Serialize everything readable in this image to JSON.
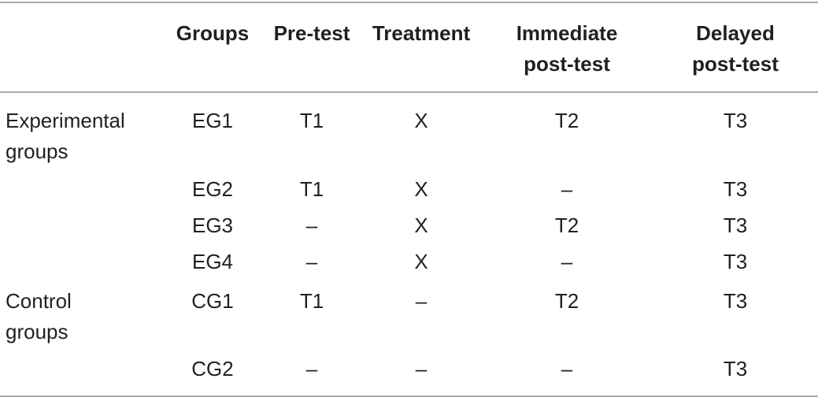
{
  "table": {
    "headers": {
      "groups": "Groups",
      "pretest": "Pre-test",
      "treatment": "Treatment",
      "immediate_line1": "Immediate",
      "immediate_line2": "post-test",
      "delayed_line1": "Delayed",
      "delayed_line2": "post-test"
    },
    "categories": {
      "experimental_line1": "Experimental",
      "experimental_line2": "groups",
      "control_line1": "Control",
      "control_line2": "groups"
    },
    "rows": [
      {
        "group": "EG1",
        "pretest": "T1",
        "treatment": "X",
        "immediate": "T2",
        "delayed": "T3"
      },
      {
        "group": "EG2",
        "pretest": "T1",
        "treatment": "X",
        "immediate": "–",
        "delayed": "T3"
      },
      {
        "group": "EG3",
        "pretest": "–",
        "treatment": "X",
        "immediate": "T2",
        "delayed": "T3"
      },
      {
        "group": "EG4",
        "pretest": "–",
        "treatment": "X",
        "immediate": "–",
        "delayed": "T3"
      },
      {
        "group": "CG1",
        "pretest": "T1",
        "treatment": "–",
        "immediate": "T2",
        "delayed": "T3"
      },
      {
        "group": "CG2",
        "pretest": "–",
        "treatment": "–",
        "immediate": "–",
        "delayed": "T3"
      }
    ]
  }
}
